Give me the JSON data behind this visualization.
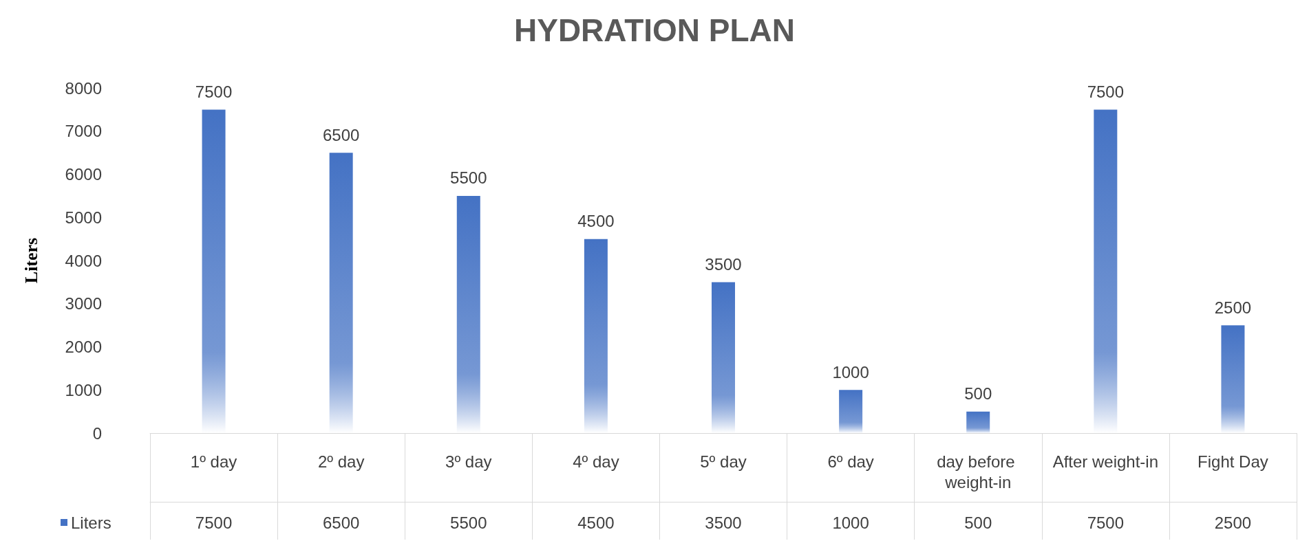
{
  "chart_data": {
    "type": "bar",
    "title": "HYDRATION PLAN",
    "ylabel": "Liters",
    "categories": [
      "1º day",
      "2º day",
      "3º day",
      "4º day",
      "5º day",
      "6º day",
      "day before weight-in",
      "After weight-in",
      "Fight Day"
    ],
    "series": [
      {
        "name": "Liters",
        "color": "#4472c4",
        "values": [
          7500,
          6500,
          5500,
          4500,
          3500,
          1000,
          500,
          7500,
          2500
        ],
        "value_labels": [
          "7500",
          "6500",
          "5500",
          "4500",
          "3500",
          "1000",
          "500",
          "7500",
          "2500"
        ]
      }
    ],
    "ylim": [
      0,
      8000
    ],
    "yticks": [
      0,
      1000,
      2000,
      3000,
      4000,
      5000,
      6000,
      7000,
      8000
    ],
    "grid": false,
    "legend": "bottom left",
    "data_labels": true
  }
}
